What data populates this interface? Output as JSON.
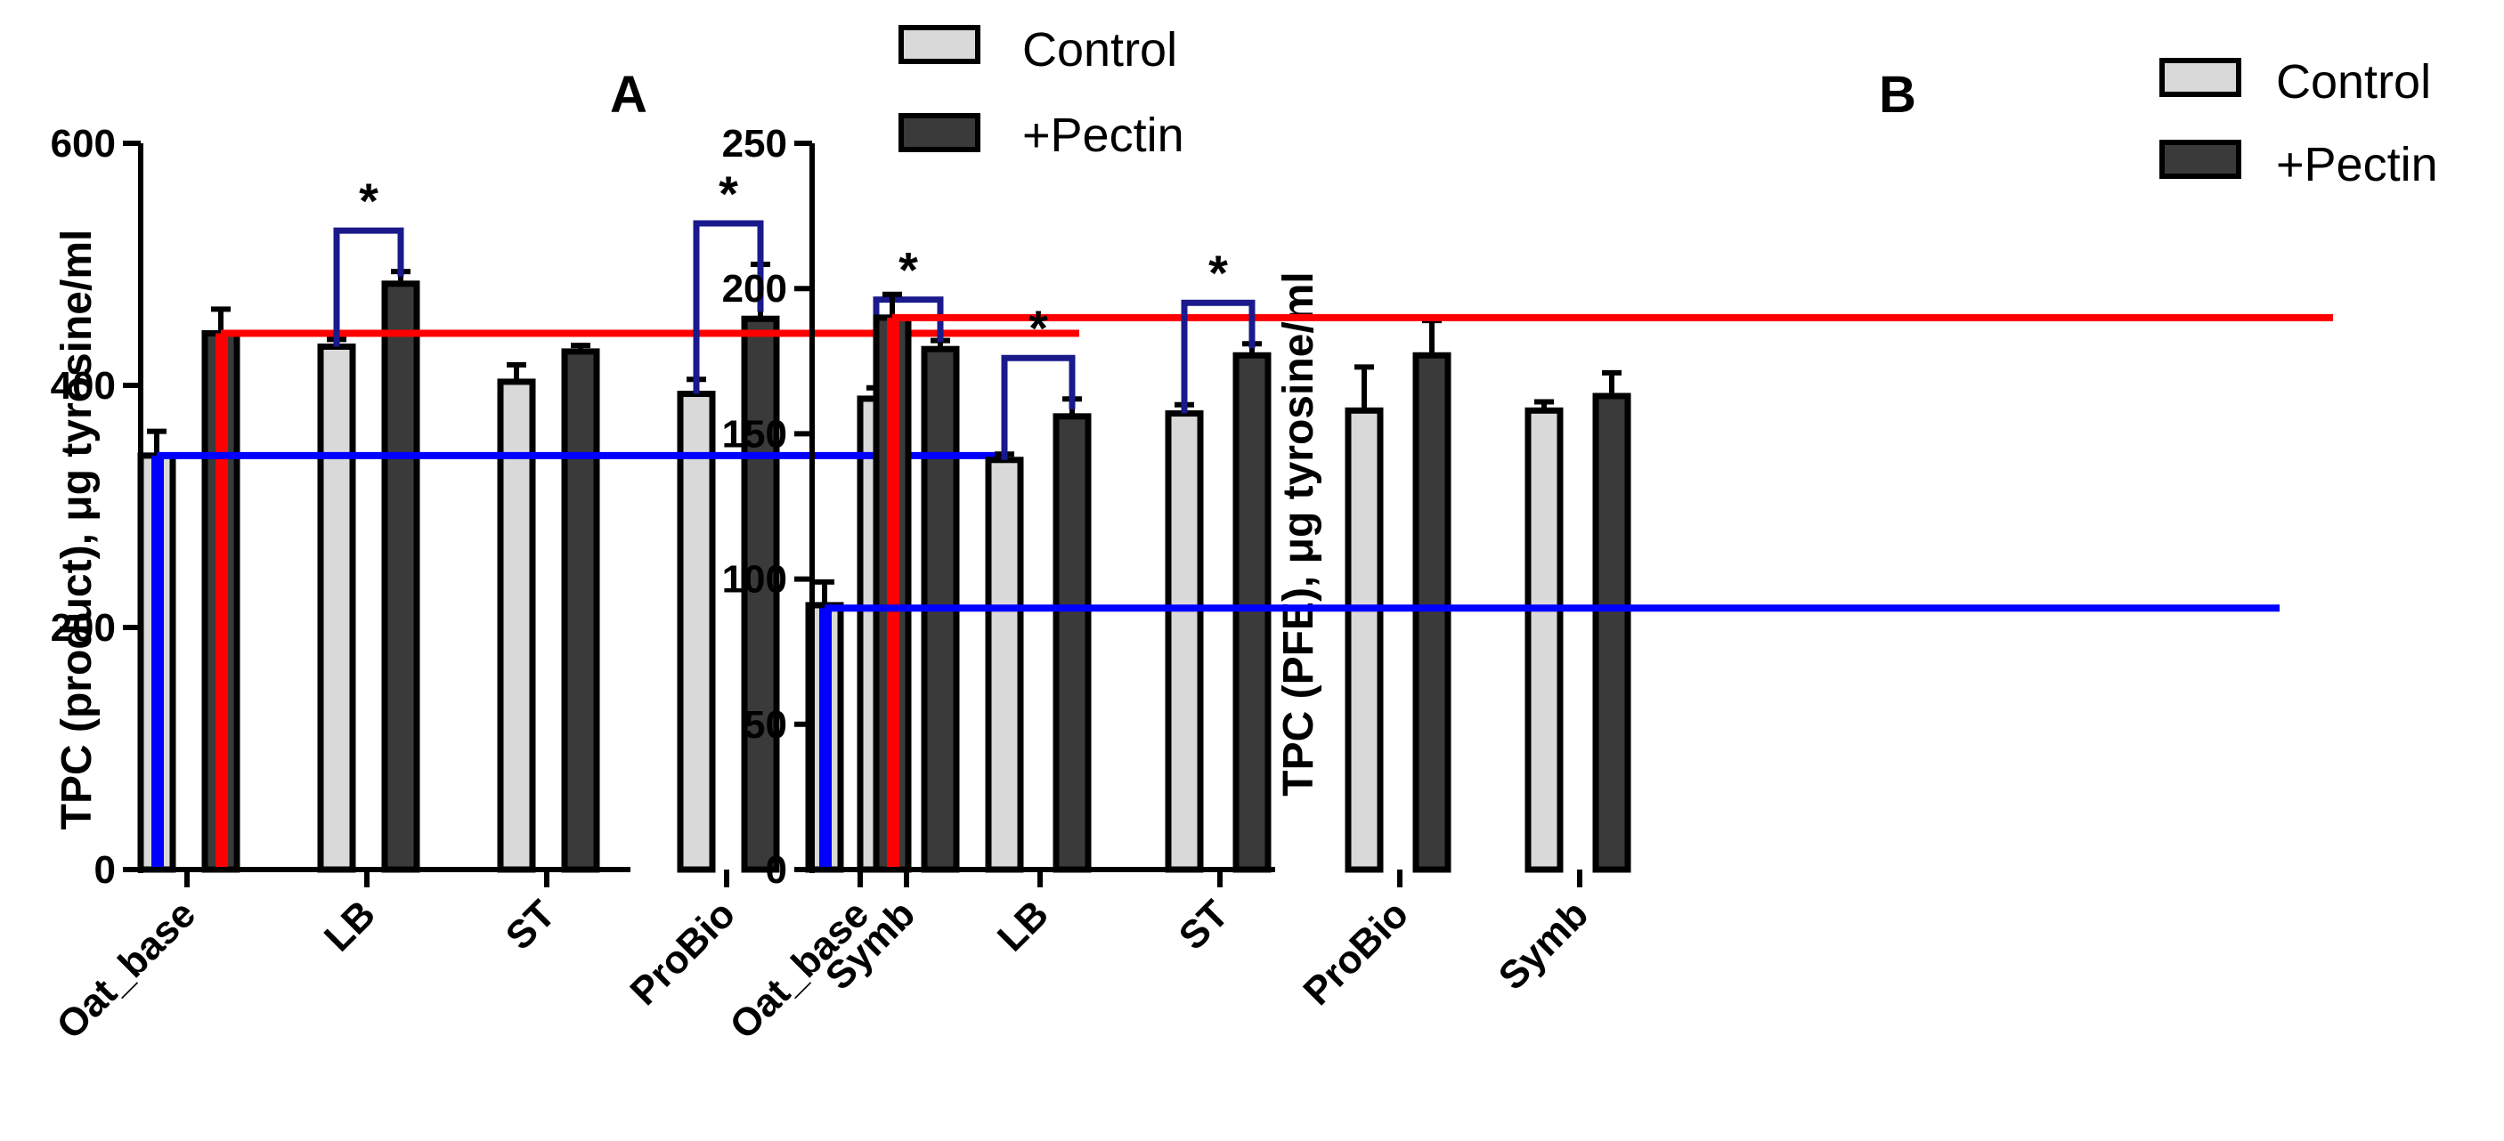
{
  "chart_data": [
    {
      "type": "bar",
      "panel": "A",
      "title": "A",
      "ylabel": "TPC (product), μg tyrosine/ml",
      "xlabel": "",
      "ylim": [
        0,
        600
      ],
      "yticks": [
        0,
        200,
        400,
        600
      ],
      "categories": [
        "Oat_base",
        "LB",
        "ST",
        "ProBio",
        "Symb"
      ],
      "series": [
        {
          "name": "Control",
          "color": "#d9d9d9",
          "values": [
            342,
            432,
            403,
            393,
            389
          ],
          "errors": [
            20,
            6,
            14,
            12,
            9
          ]
        },
        {
          "name": "+Pectin",
          "color": "#3a3a3a",
          "values": [
            443,
            484,
            428,
            455,
            430
          ],
          "errors": [
            20,
            10,
            5,
            45,
            7
          ]
        }
      ],
      "reference_lines": [
        {
          "name": "oat-base-control-level",
          "color": "#0000ff",
          "value": 342
        },
        {
          "name": "oat-base-pectin-level",
          "color": "#ff0000",
          "value": 443
        }
      ],
      "significance": [
        {
          "category": "LB",
          "label": "*"
        },
        {
          "category": "ProBio",
          "label": "*"
        },
        {
          "category": "Symb",
          "label": "*"
        }
      ],
      "legend": [
        "Control",
        "+Pectin"
      ]
    },
    {
      "type": "bar",
      "panel": "B",
      "title": "B",
      "ylabel": "TPC (PFE), μg tyrosine/ml",
      "xlabel": "",
      "ylim": [
        0,
        250
      ],
      "yticks": [
        0,
        50,
        100,
        150,
        200,
        250
      ],
      "categories": [
        "Oat_base",
        "LB",
        "ST",
        "ProBio",
        "Symb"
      ],
      "series": [
        {
          "name": "Control",
          "color": "#d9d9d9",
          "values": [
            91,
            141,
            157,
            158,
            158
          ],
          "errors": [
            8,
            2,
            3,
            15,
            3
          ]
        },
        {
          "name": "+Pectin",
          "color": "#3a3a3a",
          "values": [
            190,
            156,
            177,
            177,
            163
          ],
          "errors": [
            8,
            6,
            4,
            12,
            8
          ]
        }
      ],
      "reference_lines": [
        {
          "name": "oat-base-control-level",
          "color": "#0000ff",
          "value": 90
        },
        {
          "name": "oat-base-pectin-level",
          "color": "#ff0000",
          "value": 190
        }
      ],
      "significance": [
        {
          "category": "LB",
          "label": "*"
        },
        {
          "category": "ST",
          "label": "*"
        }
      ],
      "legend": [
        "Control",
        "+Pectin"
      ]
    }
  ]
}
